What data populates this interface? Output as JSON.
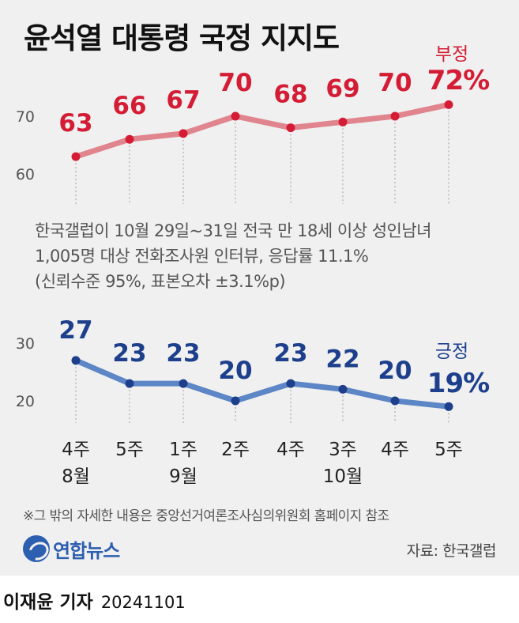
{
  "title": "윤석열 대통령 국정 지지도",
  "chart_data": [
    {
      "type": "line",
      "title": "",
      "series": [
        {
          "name": "부정",
          "values": [
            63,
            66,
            67,
            70,
            68,
            69,
            70,
            72
          ],
          "color": "#d41c35",
          "line_color": "#e0848e"
        }
      ],
      "categories": [
        "4주 8월",
        "5주",
        "1주 9월",
        "2주",
        "4주",
        "3주 10월",
        "4주",
        "5주"
      ],
      "yticks": [
        60,
        70
      ],
      "ylim": [
        58,
        75
      ],
      "end_label": {
        "name": "부정",
        "value": "72%"
      },
      "grid": false
    },
    {
      "type": "line",
      "title": "",
      "series": [
        {
          "name": "긍정",
          "values": [
            27,
            23,
            23,
            20,
            23,
            22,
            20,
            19
          ],
          "color": "#1d3f8c",
          "line_color": "#5d86c6"
        }
      ],
      "categories": [
        "4주 8월",
        "5주",
        "1주 9월",
        "2주",
        "4주",
        "3주 10월",
        "4주",
        "5주"
      ],
      "yticks": [
        20,
        30
      ],
      "ylim": [
        17,
        32
      ],
      "end_label": {
        "name": "긍정",
        "value": "19%"
      },
      "grid": false
    }
  ],
  "x_labels": [
    {
      "week": "4주",
      "month": "8월"
    },
    {
      "week": "5주",
      "month": ""
    },
    {
      "week": "1주",
      "month": "9월"
    },
    {
      "week": "2주",
      "month": ""
    },
    {
      "week": "4주",
      "month": ""
    },
    {
      "week": "3주",
      "month": "10월"
    },
    {
      "week": "4주",
      "month": ""
    },
    {
      "week": "5주",
      "month": ""
    }
  ],
  "note": {
    "line1": "한국갤럽이 10월 29일~31일 전국 만 18세 이상 성인남녀",
    "line2": "1,005명 대상 전화조사원 인터뷰, 응답률 11.1%",
    "line3": "(신뢰수준 95%, 표본오차 ±3.1%p)"
  },
  "footnote": "※그 밖의 자세한 내용은 중앙선거여론조사심의위원회 홈페이지 참조",
  "logo": {
    "text": "연합뉴스"
  },
  "source": "자료: 한국갤럽",
  "byline": {
    "author": "이재윤 기자",
    "date": "20241101"
  }
}
